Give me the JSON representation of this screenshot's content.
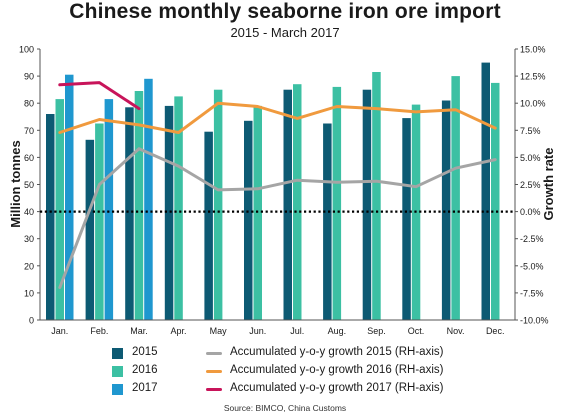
{
  "title": "Chinese monthly seaborne iron ore import",
  "subtitle": "2015 - March 2017",
  "source": "Source: BIMCO, China Customs",
  "colors": {
    "bar2015": "#0d5a73",
    "bar2016": "#3cc0a3",
    "bar2017": "#1f97cf",
    "line2015": "#a5a5a5",
    "line2016": "#f09a3e",
    "line2017": "#c8145a",
    "zeroLine": "#000000",
    "axis": "#555555",
    "grid": "#e8e8e8"
  },
  "chart_data": {
    "type": "bar",
    "title": "Chinese monthly seaborne iron ore import",
    "subtitle": "2015 - March 2017",
    "categories": [
      "Jan.",
      "Feb.",
      "Mar.",
      "Apr.",
      "May",
      "Jun.",
      "Jul.",
      "Aug.",
      "Sep.",
      "Oct.",
      "Nov.",
      "Dec."
    ],
    "ylabel": "Million tonnes",
    "ylim": [
      0,
      100
    ],
    "yticks": [
      "0",
      "10",
      "20",
      "30",
      "40",
      "50",
      "60",
      "70",
      "80",
      "90",
      "100"
    ],
    "y2label": "Growth rate",
    "y2lim": [
      -10,
      15
    ],
    "y2ticks": [
      "-10.0%",
      "-7.5%",
      "-5.0%",
      "-2.5%",
      "0.0%",
      "2.5%",
      "5.0%",
      "7.5%",
      "10.0%",
      "12.5%",
      "15.0%"
    ],
    "zero_reference_line": "dotted at 0.0% growth",
    "series": [
      {
        "name": "2015",
        "kind": "bar",
        "axis": "left",
        "values": [
          76,
          66.5,
          78.5,
          79,
          69.5,
          73.5,
          85,
          72.5,
          85,
          74.5,
          81,
          95
        ]
      },
      {
        "name": "2016",
        "kind": "bar",
        "axis": "left",
        "values": [
          81.5,
          72.5,
          84.5,
          82.5,
          85,
          79,
          87,
          86,
          91.5,
          79.5,
          90,
          87.5
        ]
      },
      {
        "name": "2017",
        "kind": "bar",
        "axis": "left",
        "values": [
          90.5,
          81.5,
          89,
          null,
          null,
          null,
          null,
          null,
          null,
          null,
          null,
          null
        ]
      },
      {
        "name": "Accumulated y-o-y growth 2015 (RH-axis)",
        "kind": "line",
        "axis": "right",
        "values": [
          -7,
          2.5,
          5.8,
          4.2,
          2.0,
          2.1,
          2.9,
          2.7,
          2.8,
          2.3,
          4.0,
          4.8
        ]
      },
      {
        "name": "Accumulated y-o-y growth 2016 (RH-axis)",
        "kind": "line",
        "axis": "right",
        "values": [
          7.3,
          8.5,
          8.0,
          7.3,
          10.0,
          9.7,
          8.6,
          9.7,
          9.5,
          9.2,
          9.4,
          7.7
        ]
      },
      {
        "name": "Accumulated y-o-y growth 2017 (RH-axis)",
        "kind": "line",
        "axis": "right",
        "values": [
          11.7,
          11.9,
          9.5,
          null,
          null,
          null,
          null,
          null,
          null,
          null,
          null,
          null
        ]
      }
    ],
    "legend_placement": "bottom",
    "grid": false
  }
}
